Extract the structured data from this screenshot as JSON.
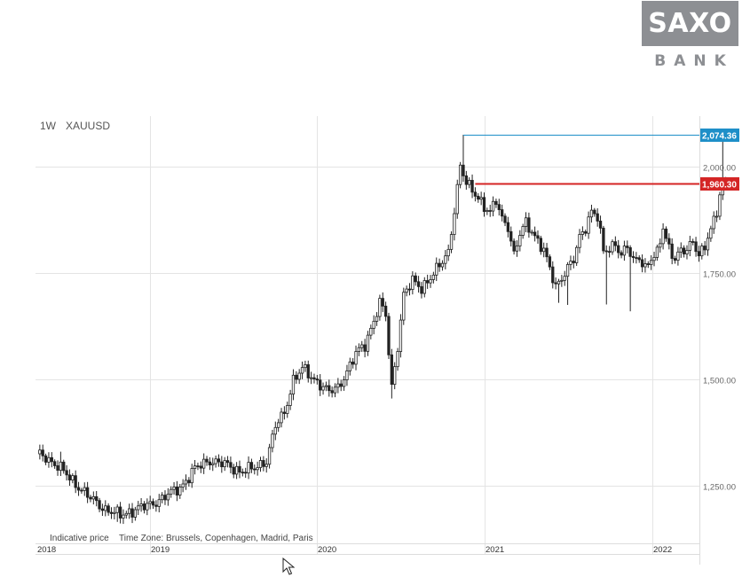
{
  "logo": {
    "main": "SAXO",
    "sub": "BANK"
  },
  "header": {
    "interval": "1W",
    "symbol": "XAUUSD"
  },
  "footer": {
    "note1": "Indicative price",
    "note2": "Time Zone: Brussels, Copenhagen, Madrid, Paris"
  },
  "colors": {
    "grid": "#e4e4e4",
    "candle": "#222222",
    "up_fill": "#ffffff",
    "high_line": "#1e8fc8",
    "level_line": "#d42525",
    "label_text": "#666666"
  },
  "chart_data": {
    "type": "candlestick",
    "interval": "1W",
    "symbol": "XAUUSD",
    "ylim": [
      1110,
      2110
    ],
    "yticks": [
      {
        "value": 1250,
        "label": "1,250.00"
      },
      {
        "value": 1500,
        "label": "1,500.00"
      },
      {
        "value": 1750,
        "label": "1,750.00"
      },
      {
        "value": 2000,
        "label": "2,000.00"
      }
    ],
    "xticks": [
      "2018",
      "2019",
      "2020",
      "2021",
      "2022"
    ],
    "anchors": [
      [
        0,
        1325
      ],
      [
        3,
        1318
      ],
      [
        8,
        1290
      ],
      [
        13,
        1255
      ],
      [
        18,
        1220
      ],
      [
        23,
        1195
      ],
      [
        28,
        1180
      ],
      [
        33,
        1195
      ],
      [
        38,
        1205
      ],
      [
        43,
        1225
      ],
      [
        48,
        1245
      ],
      [
        53,
        1290
      ],
      [
        58,
        1310
      ],
      [
        63,
        1300
      ],
      [
        68,
        1285
      ],
      [
        73,
        1290
      ],
      [
        77,
        1310
      ],
      [
        80,
        1390
      ],
      [
        83,
        1420
      ],
      [
        86,
        1500
      ],
      [
        89,
        1525
      ],
      [
        92,
        1505
      ],
      [
        95,
        1490
      ],
      [
        98,
        1470
      ],
      [
        101,
        1480
      ],
      [
        104,
        1520
      ],
      [
        107,
        1560
      ],
      [
        110,
        1580
      ],
      [
        113,
        1640
      ],
      [
        115,
        1680
      ],
      [
        117,
        1650
      ],
      [
        118,
        1560
      ],
      [
        119,
        1480
      ],
      [
        121,
        1580
      ],
      [
        123,
        1700
      ],
      [
        126,
        1730
      ],
      [
        129,
        1715
      ],
      [
        132,
        1740
      ],
      [
        135,
        1765
      ],
      [
        138,
        1800
      ],
      [
        140,
        1900
      ],
      [
        142,
        2000
      ],
      [
        144,
        1960
      ],
      [
        146,
        1945
      ],
      [
        148,
        1930
      ],
      [
        150,
        1905
      ],
      [
        152,
        1890
      ],
      [
        154,
        1920
      ],
      [
        156,
        1880
      ],
      [
        158,
        1860
      ],
      [
        160,
        1790
      ],
      [
        162,
        1840
      ],
      [
        164,
        1870
      ],
      [
        166,
        1850
      ],
      [
        168,
        1825
      ],
      [
        170,
        1800
      ],
      [
        172,
        1760
      ],
      [
        174,
        1720
      ],
      [
        176,
        1740
      ],
      [
        178,
        1760
      ],
      [
        180,
        1780
      ],
      [
        182,
        1835
      ],
      [
        184,
        1860
      ],
      [
        186,
        1895
      ],
      [
        188,
        1880
      ],
      [
        190,
        1800
      ],
      [
        192,
        1810
      ],
      [
        194,
        1820
      ],
      [
        196,
        1790
      ],
      [
        198,
        1810
      ],
      [
        200,
        1780
      ],
      [
        202,
        1790
      ],
      [
        204,
        1760
      ],
      [
        206,
        1780
      ],
      [
        208,
        1795
      ],
      [
        210,
        1860
      ],
      [
        212,
        1810
      ],
      [
        214,
        1780
      ],
      [
        216,
        1800
      ],
      [
        218,
        1805
      ],
      [
        220,
        1830
      ],
      [
        222,
        1790
      ],
      [
        224,
        1810
      ],
      [
        226,
        1850
      ],
      [
        228,
        1900
      ],
      [
        229,
        1935
      ],
      [
        230,
        1960
      ],
      [
        231,
        1962
      ]
    ],
    "spikes": [
      {
        "week": 8,
        "high": 1330
      },
      {
        "week": 27,
        "low": 1165
      },
      {
        "week": 119,
        "low": 1455
      },
      {
        "week": 143,
        "high": 2075
      },
      {
        "week": 175,
        "low": 1680
      },
      {
        "week": 178,
        "low": 1675
      },
      {
        "week": 191,
        "low": 1676
      },
      {
        "week": 199,
        "low": 1660
      },
      {
        "week": 230,
        "high": 2074.36
      }
    ],
    "price_lines": [
      {
        "value": 2074.36,
        "label": "2,074.36",
        "color": "#1e8fc8"
      },
      {
        "value": 1960.3,
        "label": "1,960.30",
        "color": "#d42525"
      }
    ]
  }
}
